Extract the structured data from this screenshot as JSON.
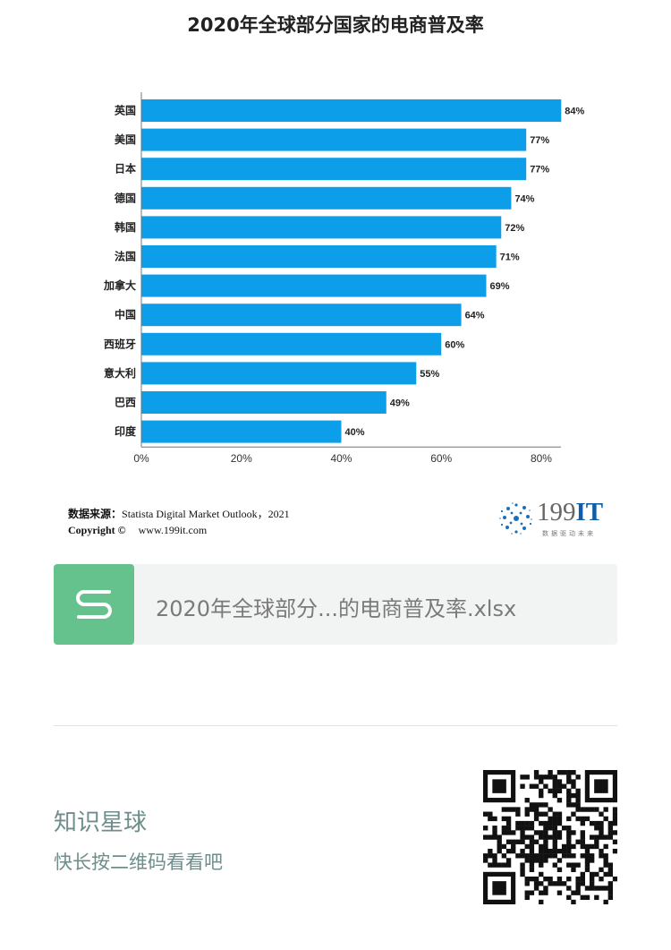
{
  "header": {
    "title": "2020年全球部分国家的电商普及率"
  },
  "chart_data": {
    "type": "bar",
    "orientation": "horizontal",
    "categories": [
      "英国",
      "美国",
      "日本",
      "德国",
      "韩国",
      "法国",
      "加拿大",
      "中国",
      "西班牙",
      "意大利",
      "巴西",
      "印度"
    ],
    "values": [
      84,
      77,
      77,
      74,
      72,
      71,
      69,
      64,
      60,
      55,
      49,
      40
    ],
    "value_labels": [
      "84%",
      "77%",
      "77%",
      "74%",
      "72%",
      "71%",
      "69%",
      "64%",
      "60%",
      "55%",
      "49%",
      "40%"
    ],
    "x_ticks": [
      "0%",
      "20%",
      "40%",
      "60%",
      "80%"
    ],
    "x_tick_values": [
      0,
      20,
      40,
      60,
      80
    ],
    "xlim": [
      0,
      84
    ],
    "bar_color": "#0c9ee8",
    "grid": false
  },
  "source": {
    "label": "数据来源：",
    "text": "Statista Digital Market Outlook，2021",
    "copyright_label": "Copyright ©",
    "website": "www.199it.com"
  },
  "logo": {
    "number": "199",
    "letters": "IT",
    "slogan": "数据驱动未来"
  },
  "file_card": {
    "icon": "spreadsheet-s-icon",
    "icon_color": "#66c28d",
    "name": "2020年全球部分...的电商普及率.xlsx"
  },
  "promo": {
    "title": "知识星球",
    "subtitle": "快长按二维码看看吧",
    "text_color": "#6f8e8b"
  }
}
